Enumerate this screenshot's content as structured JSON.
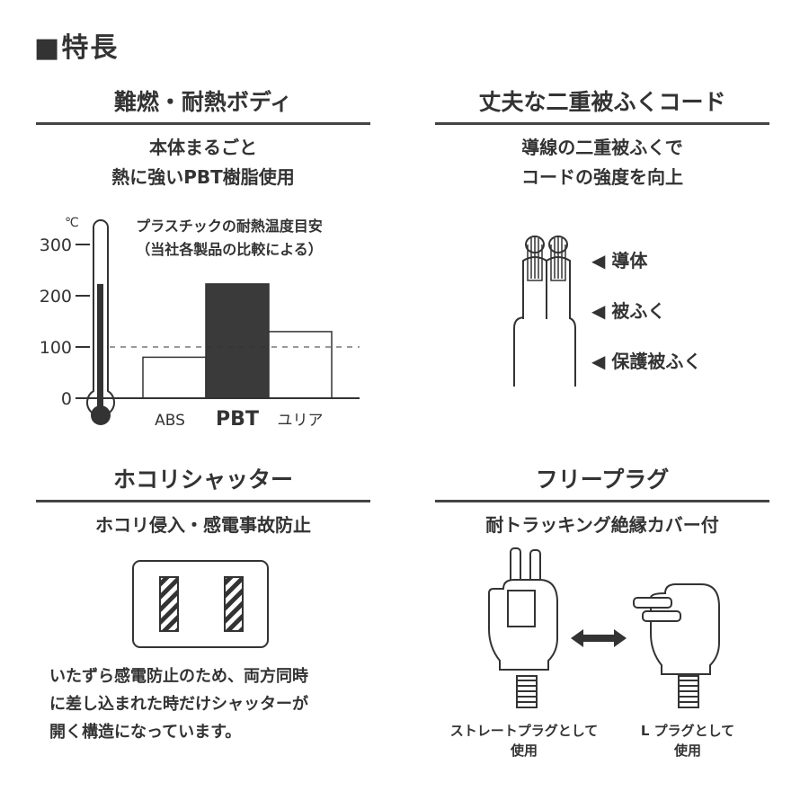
{
  "title": "■特長",
  "sections": [
    {
      "heading": "難燃・耐熱ボディ",
      "subtitle": [
        "本体まるごと",
        "熱に強いPBT樹脂使用"
      ]
    },
    {
      "heading": "丈夫な二重被ふくコード",
      "subtitle": [
        "導線の二重被ふくで",
        "コードの強度を向上"
      ],
      "labels": [
        "◀ 導体",
        "◀ 被ふく",
        "◀ 保護被ふく"
      ]
    },
    {
      "heading": "ホコリシャッター",
      "subtitle": [
        "ホコリ侵入・感電事故防止"
      ],
      "body": [
        "いたずら感電防止のため、両方同時",
        "に差し込まれた時だけシャッターが",
        "開く構造になっています。"
      ]
    },
    {
      "heading": "フリープラグ",
      "subtitle": [
        "耐トラッキング絶縁カバー付"
      ],
      "captions": [
        [
          "ストレートプラグとして",
          "使用"
        ],
        [
          "L プラグとして",
          "使用"
        ]
      ]
    }
  ],
  "chart_data": {
    "type": "bar",
    "title": "プラスチックの耐熱温度目安",
    "subtitle": "（当社各製品の比較による）",
    "unit": "℃",
    "categories": [
      "ABS",
      "PBT",
      "ユリア"
    ],
    "values": [
      80,
      223,
      130
    ],
    "yticks": [
      "0",
      "100",
      "200",
      "300"
    ],
    "ylim": [
      0,
      300
    ],
    "reference_line": 100,
    "thermometer_value": 223,
    "colors": {
      "highlight": "#3a3a3a",
      "normal": "#ffffff"
    }
  }
}
